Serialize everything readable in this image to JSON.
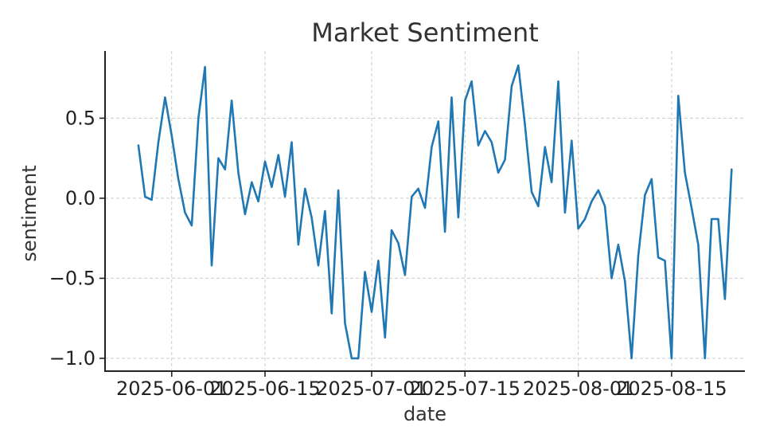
{
  "chart_data": {
    "type": "line",
    "title": "Market Sentiment",
    "xlabel": "date",
    "ylabel": "sentiment",
    "x_start": "2025-05-27",
    "x_end": "2025-08-21",
    "xlim": [
      "2025-05-22",
      "2025-08-26"
    ],
    "ylim": [
      -1.08,
      0.92
    ],
    "x_ticks": [
      "2025-06-01",
      "2025-06-15",
      "2025-07-01",
      "2025-07-15",
      "2025-08-01",
      "2025-08-15"
    ],
    "x_tick_labels": [
      "2025-06-01",
      "2025-06-15",
      "2025-07-01",
      "2025-07-15",
      "2025-08-01",
      "2025-08-15"
    ],
    "y_ticks": [
      -1.0,
      -0.5,
      0.0,
      0.5
    ],
    "y_tick_labels": [
      "−1.0",
      "−0.5",
      "0.0",
      "0.5"
    ],
    "grid": true,
    "color": "#1f77b4",
    "series": [
      {
        "values": [
          0.33,
          0.01,
          -0.01,
          0.35,
          0.63,
          0.39,
          0.12,
          -0.09,
          -0.17,
          0.5,
          0.82,
          -0.42,
          0.25,
          0.18,
          0.61,
          0.16,
          -0.1,
          0.1,
          -0.02,
          0.23,
          0.07,
          0.27,
          0.01,
          0.35,
          -0.29,
          0.06,
          -0.12,
          -0.42,
          -0.08,
          -0.72,
          0.05,
          -0.78,
          -1.0,
          -1.0,
          -0.46,
          -0.71,
          -0.39,
          -0.87,
          -0.2,
          -0.28,
          -0.48,
          0.01,
          0.06,
          -0.06,
          0.32,
          0.48,
          -0.21,
          0.63,
          -0.12,
          0.61,
          0.73,
          0.33,
          0.42,
          0.35,
          0.16,
          0.24,
          0.7,
          0.83,
          0.46,
          0.04,
          -0.05,
          0.32,
          0.1,
          0.73,
          -0.09,
          0.36,
          -0.19,
          -0.13,
          -0.02,
          0.05,
          -0.05,
          -0.5,
          -0.29,
          -0.52,
          -1.0,
          -0.36,
          0.02,
          0.12,
          -0.37,
          -0.39,
          -1.0,
          0.64,
          0.16,
          -0.06,
          -0.29,
          -1.0,
          -0.13,
          -0.13,
          -0.63,
          0.18
        ]
      }
    ]
  }
}
